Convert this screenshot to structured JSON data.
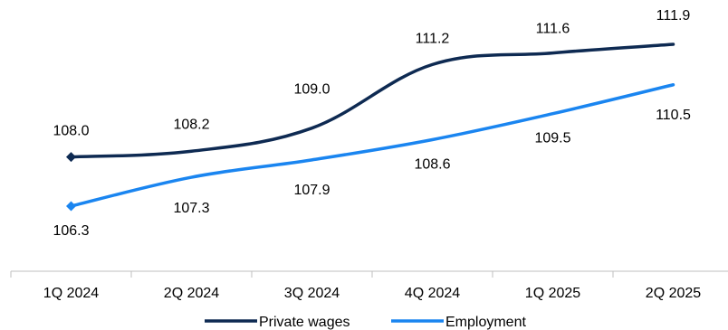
{
  "chart_data": {
    "type": "line",
    "categories": [
      "1Q 2024",
      "2Q 2024",
      "3Q 2024",
      "4Q 2024",
      "1Q 2025",
      "2Q 2025"
    ],
    "series": [
      {
        "name": "Private wages",
        "color": "#0e2a52",
        "values": [
          108.0,
          108.2,
          109.0,
          111.2,
          111.6,
          111.9
        ],
        "labels": [
          "108.0",
          "108.2",
          "109.0",
          "111.2",
          "111.6",
          "111.9"
        ]
      },
      {
        "name": "Employment",
        "color": "#1a85f0",
        "values": [
          106.3,
          107.3,
          107.9,
          108.6,
          109.5,
          110.5
        ],
        "labels": [
          "106.3",
          "107.3",
          "107.9",
          "108.6",
          "109.5",
          "110.5"
        ]
      }
    ],
    "title": "",
    "xlabel": "",
    "ylabel": "",
    "y_axis_visible": false,
    "grid": false,
    "legend_position": "bottom",
    "smooth_lines": true,
    "first_point_marker": "diamond"
  }
}
